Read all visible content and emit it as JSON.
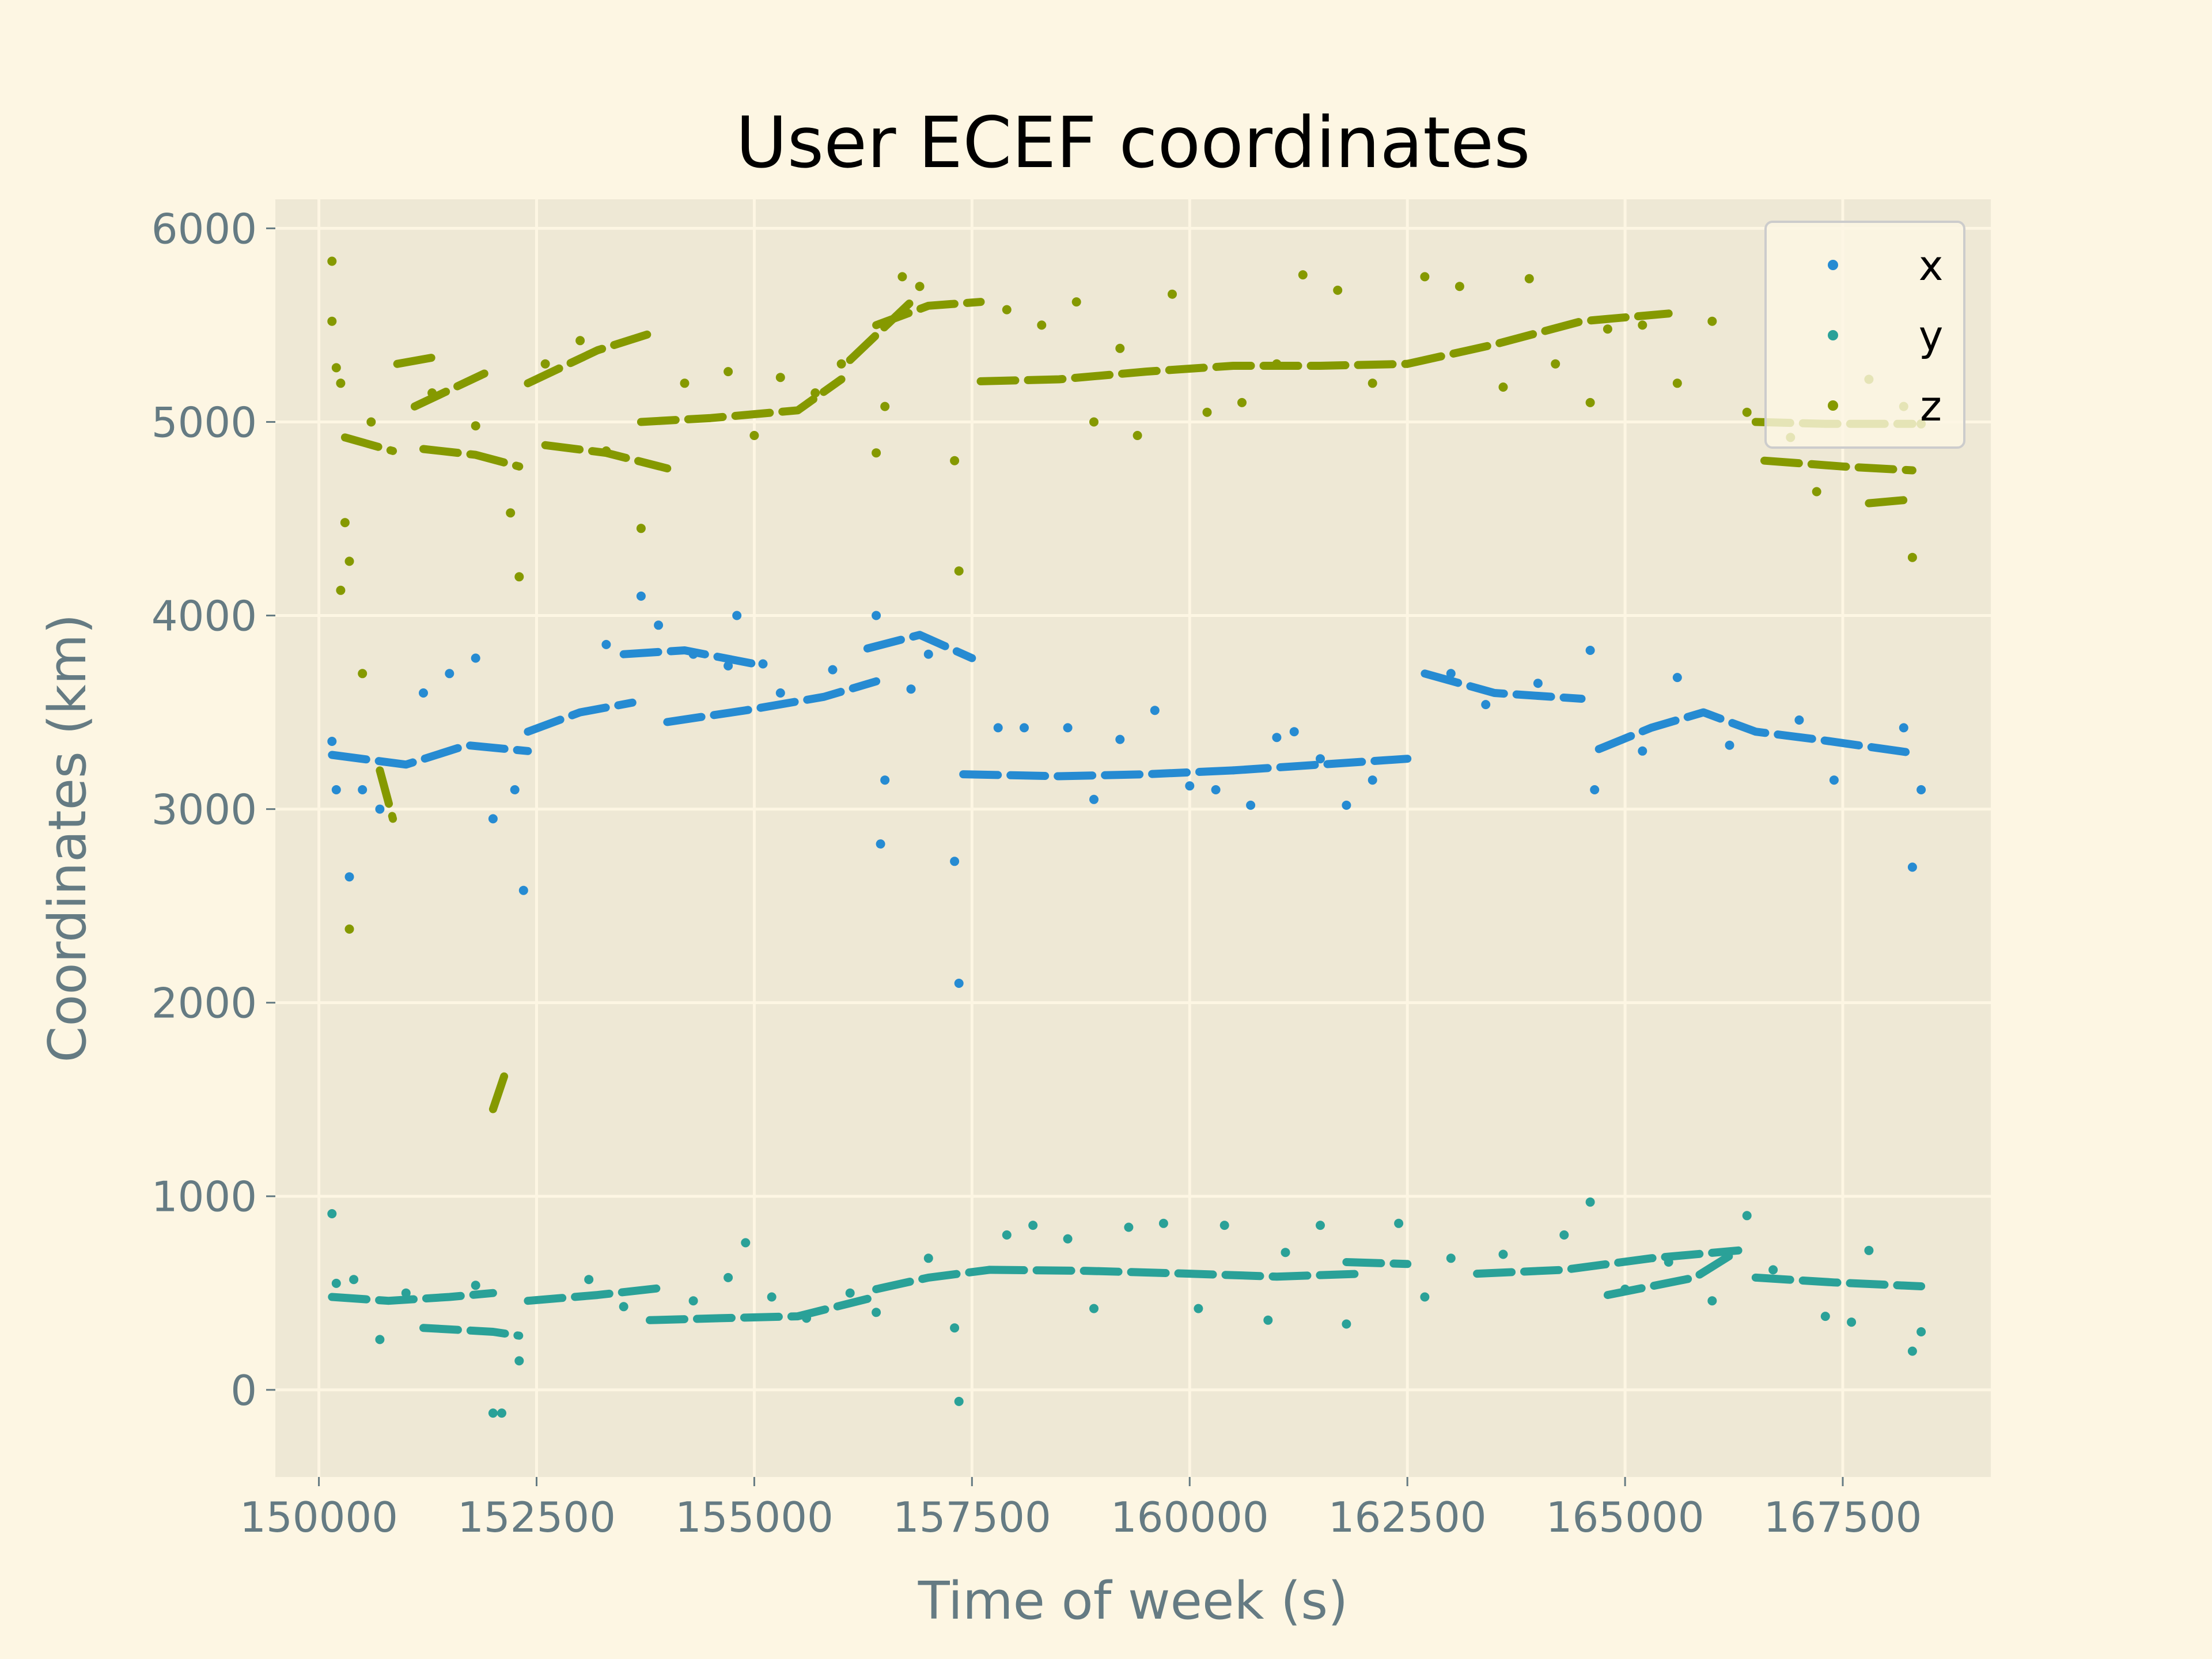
{
  "chart_data": {
    "type": "scatter",
    "title": "User ECEF coordinates",
    "xlabel": "Time of week (s)",
    "ylabel": "Coordinates (km)",
    "xlim": [
      149500,
      169200
    ],
    "ylim": [
      -450,
      6150
    ],
    "xticks": [
      150000,
      152500,
      155000,
      157500,
      160000,
      162500,
      165000,
      167500
    ],
    "yticks": [
      0,
      1000,
      2000,
      3000,
      4000,
      5000,
      6000
    ],
    "grid": true,
    "legend_position": "top-right",
    "series": [
      {
        "name": "x",
        "color": "#268bd2",
        "segments": [
          [
            [
              150150,
              3280
            ],
            [
              151000,
              3230
            ],
            [
              151700,
              3330
            ],
            [
              152400,
              3300
            ]
          ],
          [
            [
              152400,
              3400
            ],
            [
              153000,
              3500
            ],
            [
              153600,
              3550
            ]
          ],
          [
            [
              153500,
              3800
            ],
            [
              154200,
              3820
            ],
            [
              155000,
              3750
            ]
          ],
          [
            [
              154000,
              3450
            ],
            [
              154900,
              3510
            ],
            [
              155800,
              3580
            ],
            [
              156400,
              3660
            ]
          ],
          [
            [
              156300,
              3830
            ],
            [
              156900,
              3900
            ],
            [
              157500,
              3780
            ]
          ],
          [
            [
              157400,
              3180
            ],
            [
              158500,
              3170
            ],
            [
              159500,
              3180
            ],
            [
              160500,
              3200
            ]
          ],
          [
            [
              160500,
              3200
            ],
            [
              161500,
              3230
            ],
            [
              162500,
              3260
            ]
          ],
          [
            [
              162700,
              3700
            ],
            [
              163500,
              3600
            ],
            [
              164500,
              3570
            ]
          ],
          [
            [
              164700,
              3310
            ],
            [
              165300,
              3420
            ],
            [
              165900,
              3500
            ],
            [
              166500,
              3400
            ],
            [
              167200,
              3360
            ],
            [
              168300,
              3290
            ]
          ]
        ],
        "points": [
          [
            150150,
            3350
          ],
          [
            150200,
            3100
          ],
          [
            150350,
            2650
          ],
          [
            150500,
            3100
          ],
          [
            150700,
            3000
          ],
          [
            151200,
            3600
          ],
          [
            151500,
            3700
          ],
          [
            151800,
            3780
          ],
          [
            152000,
            2950
          ],
          [
            152250,
            3100
          ],
          [
            152350,
            2580
          ],
          [
            153300,
            3850
          ],
          [
            153700,
            4100
          ],
          [
            153900,
            3950
          ],
          [
            154300,
            3800
          ],
          [
            154700,
            3740
          ],
          [
            154800,
            4000
          ],
          [
            155100,
            3750
          ],
          [
            155300,
            3600
          ],
          [
            155900,
            3720
          ],
          [
            156400,
            4000
          ],
          [
            156450,
            2820
          ],
          [
            156500,
            3150
          ],
          [
            156800,
            3620
          ],
          [
            157000,
            3800
          ],
          [
            157300,
            2730
          ],
          [
            157350,
            2100
          ],
          [
            157800,
            3420
          ],
          [
            158100,
            3420
          ],
          [
            158600,
            3420
          ],
          [
            158900,
            3050
          ],
          [
            159200,
            3360
          ],
          [
            159600,
            3510
          ],
          [
            160000,
            3120
          ],
          [
            160300,
            3100
          ],
          [
            160700,
            3020
          ],
          [
            161000,
            3370
          ],
          [
            161200,
            3400
          ],
          [
            161500,
            3260
          ],
          [
            161800,
            3020
          ],
          [
            162100,
            3150
          ],
          [
            163000,
            3700
          ],
          [
            163400,
            3540
          ],
          [
            164000,
            3650
          ],
          [
            164600,
            3820
          ],
          [
            164650,
            3100
          ],
          [
            165200,
            3300
          ],
          [
            165600,
            3680
          ],
          [
            166200,
            3330
          ],
          [
            167000,
            3460
          ],
          [
            167400,
            3150
          ],
          [
            168200,
            3420
          ],
          [
            168300,
            2700
          ],
          [
            168400,
            3100
          ]
        ]
      },
      {
        "name": "y",
        "color": "#2aa198",
        "segments": [
          [
            [
              150150,
              480
            ],
            [
              150800,
              460
            ],
            [
              151500,
              480
            ],
            [
              152000,
              500
            ]
          ],
          [
            [
              152400,
              460
            ],
            [
              153200,
              490
            ],
            [
              154000,
              530
            ]
          ],
          [
            [
              153800,
              360
            ],
            [
              154600,
              370
            ],
            [
              155500,
              380
            ],
            [
              156300,
              470
            ]
          ],
          [
            [
              156400,
              520
            ],
            [
              157000,
              580
            ],
            [
              157700,
              620
            ]
          ],
          [
            [
              157700,
              620
            ],
            [
              158800,
              615
            ],
            [
              160000,
              600
            ],
            [
              161000,
              585
            ],
            [
              162000,
              600
            ]
          ],
          [
            [
              161800,
              660
            ],
            [
              162500,
              650
            ]
          ],
          [
            [
              163300,
              600
            ],
            [
              164300,
              620
            ],
            [
              165300,
              680
            ],
            [
              166300,
              720
            ]
          ],
          [
            [
              164800,
              490
            ],
            [
              165800,
              580
            ],
            [
              166300,
              720
            ]
          ],
          [
            [
              166500,
              580
            ],
            [
              167400,
              555
            ],
            [
              168400,
              535
            ]
          ],
          [
            [
              151200,
              320
            ],
            [
              152000,
              300
            ],
            [
              152300,
              280
            ]
          ]
        ],
        "points": [
          [
            150150,
            910
          ],
          [
            150200,
            550
          ],
          [
            150400,
            570
          ],
          [
            150700,
            260
          ],
          [
            151000,
            500
          ],
          [
            151800,
            540
          ],
          [
            152000,
            -120
          ],
          [
            152100,
            -120
          ],
          [
            152300,
            150
          ],
          [
            153100,
            570
          ],
          [
            153500,
            430
          ],
          [
            154300,
            460
          ],
          [
            154700,
            580
          ],
          [
            154900,
            760
          ],
          [
            155200,
            480
          ],
          [
            155600,
            370
          ],
          [
            156100,
            500
          ],
          [
            156400,
            400
          ],
          [
            157000,
            680
          ],
          [
            157300,
            320
          ],
          [
            157350,
            -60
          ],
          [
            157900,
            800
          ],
          [
            158200,
            850
          ],
          [
            158600,
            780
          ],
          [
            158900,
            420
          ],
          [
            159300,
            840
          ],
          [
            159700,
            860
          ],
          [
            160100,
            420
          ],
          [
            160400,
            850
          ],
          [
            160900,
            360
          ],
          [
            161100,
            710
          ],
          [
            161500,
            850
          ],
          [
            161800,
            340
          ],
          [
            162400,
            860
          ],
          [
            162700,
            480
          ],
          [
            163000,
            680
          ],
          [
            163600,
            700
          ],
          [
            164300,
            800
          ],
          [
            164600,
            970
          ],
          [
            165000,
            520
          ],
          [
            165500,
            660
          ],
          [
            166000,
            460
          ],
          [
            166400,
            900
          ],
          [
            166700,
            620
          ],
          [
            167300,
            380
          ],
          [
            167600,
            350
          ],
          [
            167800,
            720
          ],
          [
            168300,
            200
          ],
          [
            168400,
            300
          ]
        ]
      },
      {
        "name": "z",
        "color": "#859900",
        "segments": [
          [
            [
              150300,
              4920
            ],
            [
              150850,
              4850
            ]
          ],
          [
            [
              150700,
              3200
            ],
            [
              150850,
              2950
            ]
          ],
          [
            [
              150900,
              5300
            ],
            [
              151400,
              5340
            ]
          ],
          [
            [
              151100,
              5080
            ],
            [
              151900,
              5250
            ]
          ],
          [
            [
              151200,
              4860
            ],
            [
              151800,
              4830
            ],
            [
              152300,
              4770
            ]
          ],
          [
            [
              152000,
              1450
            ],
            [
              152150,
              1650
            ]
          ],
          [
            [
              152400,
              5200
            ],
            [
              153200,
              5370
            ],
            [
              153900,
              5470
            ]
          ],
          [
            [
              152600,
              4880
            ],
            [
              153300,
              4840
            ],
            [
              154000,
              4760
            ]
          ],
          [
            [
              153700,
              5000
            ],
            [
              154500,
              5020
            ],
            [
              155500,
              5060
            ],
            [
              156000,
              5220
            ]
          ],
          [
            [
              156100,
              5320
            ],
            [
              156800,
              5620
            ]
          ],
          [
            [
              156400,
              5500
            ],
            [
              157000,
              5600
            ],
            [
              157600,
              5620
            ]
          ],
          [
            [
              157600,
              5210
            ],
            [
              158500,
              5220
            ],
            [
              159500,
              5260
            ],
            [
              160500,
              5290
            ],
            [
              161500,
              5290
            ],
            [
              162500,
              5300
            ]
          ],
          [
            [
              162500,
              5300
            ],
            [
              163500,
              5400
            ],
            [
              164500,
              5520
            ],
            [
              165500,
              5560
            ]
          ],
          [
            [
              166500,
              5000
            ],
            [
              167300,
              4990
            ],
            [
              168300,
              4990
            ]
          ],
          [
            [
              166600,
              4800
            ],
            [
              167500,
              4770
            ],
            [
              168300,
              4750
            ]
          ],
          [
            [
              167800,
              4580
            ],
            [
              168300,
              4600
            ]
          ]
        ],
        "points": [
          [
            150150,
            5830
          ],
          [
            150150,
            5520
          ],
          [
            150200,
            5280
          ],
          [
            150250,
            5200
          ],
          [
            150250,
            4130
          ],
          [
            150300,
            4480
          ],
          [
            150350,
            4280
          ],
          [
            150350,
            2380
          ],
          [
            150500,
            3700
          ],
          [
            150600,
            5000
          ],
          [
            151300,
            5150
          ],
          [
            151800,
            4980
          ],
          [
            152200,
            4530
          ],
          [
            152300,
            4200
          ],
          [
            152600,
            5300
          ],
          [
            153000,
            5420
          ],
          [
            153300,
            4850
          ],
          [
            153700,
            4450
          ],
          [
            154200,
            5200
          ],
          [
            154700,
            5260
          ],
          [
            155000,
            4930
          ],
          [
            155300,
            5230
          ],
          [
            155700,
            5150
          ],
          [
            156000,
            5300
          ],
          [
            156400,
            4840
          ],
          [
            156500,
            5080
          ],
          [
            156700,
            5750
          ],
          [
            156900,
            5700
          ],
          [
            157300,
            4800
          ],
          [
            157350,
            4230
          ],
          [
            157900,
            5580
          ],
          [
            158300,
            5500
          ],
          [
            158700,
            5620
          ],
          [
            158900,
            5000
          ],
          [
            159200,
            5380
          ],
          [
            159400,
            4930
          ],
          [
            159800,
            5660
          ],
          [
            160200,
            5050
          ],
          [
            160600,
            5100
          ],
          [
            161000,
            5300
          ],
          [
            161300,
            5760
          ],
          [
            161700,
            5680
          ],
          [
            162100,
            5200
          ],
          [
            162700,
            5750
          ],
          [
            163100,
            5700
          ],
          [
            163600,
            5180
          ],
          [
            163900,
            5740
          ],
          [
            164200,
            5300
          ],
          [
            164600,
            5100
          ],
          [
            164800,
            5480
          ],
          [
            165200,
            5500
          ],
          [
            165600,
            5200
          ],
          [
            166000,
            5520
          ],
          [
            166400,
            5050
          ],
          [
            166900,
            4920
          ],
          [
            167200,
            4640
          ],
          [
            167800,
            5220
          ],
          [
            168200,
            5080
          ],
          [
            168300,
            4300
          ],
          [
            168400,
            4990
          ]
        ]
      }
    ]
  }
}
